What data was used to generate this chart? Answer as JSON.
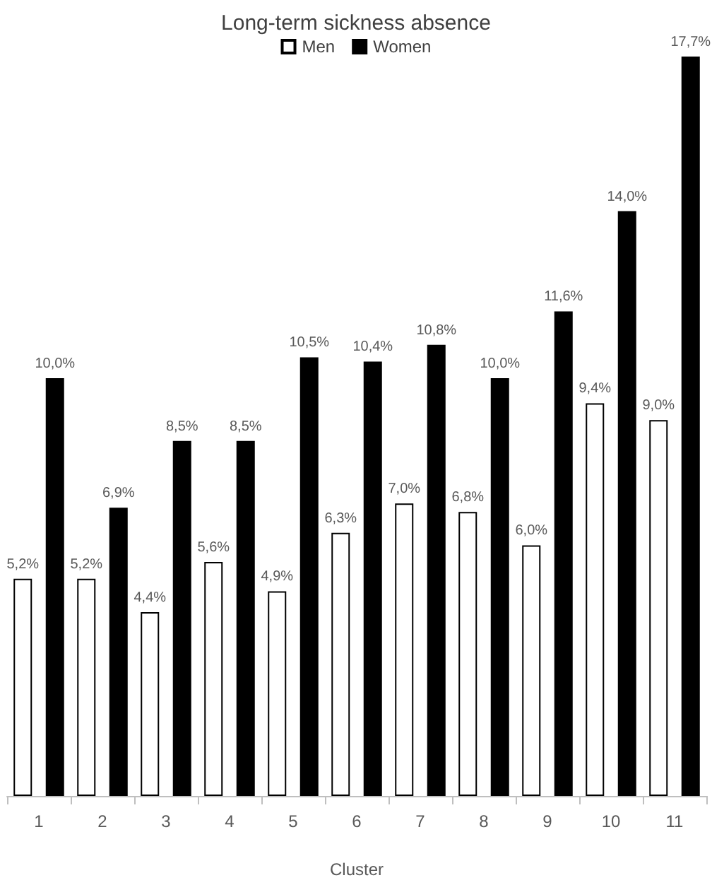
{
  "chart_data": {
    "type": "bar",
    "title": "Long-term sickness absence",
    "xlabel": "Cluster",
    "categories": [
      "1",
      "2",
      "3",
      "4",
      "5",
      "6",
      "7",
      "8",
      "9",
      "10",
      "11"
    ],
    "series": [
      {
        "name": "Men",
        "color": "#ffffff",
        "values": [
          5.2,
          5.2,
          4.4,
          5.6,
          4.9,
          6.3,
          7.0,
          6.8,
          6.0,
          9.4,
          9.0
        ],
        "value_labels": [
          "5,2%",
          "5,2%",
          "4,4%",
          "5,6%",
          "4,9%",
          "6,3%",
          "7,0%",
          "6,8%",
          "6,0%",
          "9,4%",
          "9,0%"
        ]
      },
      {
        "name": "Women",
        "color": "#000000",
        "values": [
          10.0,
          6.9,
          8.5,
          8.5,
          10.5,
          10.4,
          10.8,
          10.0,
          11.6,
          14.0,
          17.7
        ],
        "value_labels": [
          "10,0%",
          "6,9%",
          "8,5%",
          "8,5%",
          "10,5%",
          "10,4%",
          "10,8%",
          "10,0%",
          "11,6%",
          "14,0%",
          "17,7%"
        ]
      }
    ],
    "legend": "top",
    "grid": false
  }
}
